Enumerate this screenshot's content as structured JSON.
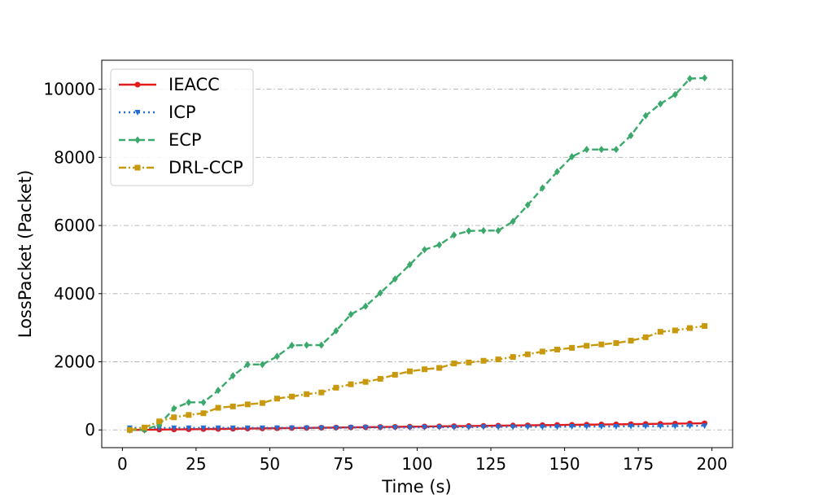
{
  "chart_data": {
    "type": "line",
    "xlabel": "Time (s)",
    "ylabel": "LossPacket (Packet)",
    "xlim": [
      -7,
      207
    ],
    "ylim": [
      -520,
      10850
    ],
    "xticks": [
      0,
      25,
      50,
      75,
      100,
      125,
      150,
      175,
      200
    ],
    "yticks": [
      0,
      2000,
      4000,
      6000,
      8000,
      10000
    ],
    "grid": "horizontal, dash-dot",
    "legend_position": "upper-left",
    "x": [
      2.5,
      7.5,
      12.5,
      17.5,
      22.5,
      27.5,
      32.5,
      37.5,
      42.5,
      47.5,
      52.5,
      57.5,
      62.5,
      67.5,
      72.5,
      77.5,
      82.5,
      87.5,
      92.5,
      97.5,
      102.5,
      107.5,
      112.5,
      117.5,
      122.5,
      127.5,
      132.5,
      137.5,
      142.5,
      147.5,
      152.5,
      157.5,
      162.5,
      167.5,
      172.5,
      177.5,
      182.5,
      187.5,
      192.5,
      197.5
    ],
    "series": [
      {
        "name": "IEACC",
        "color": "#e31a1c",
        "line_style": "solid",
        "marker": "circle",
        "values": [
          0,
          5,
          10,
          15,
          20,
          25,
          30,
          35,
          40,
          45,
          50,
          55,
          60,
          65,
          70,
          75,
          80,
          85,
          90,
          95,
          100,
          105,
          110,
          115,
          120,
          125,
          130,
          135,
          140,
          145,
          150,
          155,
          160,
          165,
          170,
          175,
          180,
          185,
          190,
          195
        ]
      },
      {
        "name": "ICP",
        "color": "#1f6fd6",
        "line_style": "dotted",
        "marker": "triangle-down",
        "values": [
          60,
          60,
          60,
          60,
          60,
          60,
          60,
          60,
          60,
          60,
          60,
          60,
          60,
          60,
          60,
          70,
          70,
          70,
          70,
          70,
          80,
          80,
          80,
          80,
          90,
          90,
          90,
          90,
          90,
          90,
          100,
          100,
          100,
          100,
          110,
          110,
          110,
          110,
          120,
          120
        ]
      },
      {
        "name": "ECP",
        "color": "#3aa96b",
        "line_style": "dashed",
        "marker": "diamond",
        "values": [
          0,
          0,
          150,
          630,
          810,
          810,
          1160,
          1590,
          1920,
          1920,
          2160,
          2480,
          2490,
          2490,
          2910,
          3390,
          3630,
          4020,
          4430,
          4850,
          5290,
          5430,
          5720,
          5840,
          5850,
          5850,
          6120,
          6600,
          7100,
          7580,
          8020,
          8230,
          8230,
          8230,
          8640,
          9220,
          9570,
          9840,
          10310,
          10330
        ]
      },
      {
        "name": "DRL-CCP",
        "color": "#c8990c",
        "line_style": "dash-dot",
        "marker": "square",
        "values": [
          0,
          70,
          250,
          370,
          440,
          490,
          650,
          690,
          750,
          790,
          920,
          980,
          1050,
          1100,
          1240,
          1340,
          1410,
          1500,
          1620,
          1720,
          1780,
          1820,
          1950,
          1980,
          2030,
          2070,
          2140,
          2220,
          2300,
          2360,
          2410,
          2470,
          2510,
          2550,
          2620,
          2720,
          2880,
          2920,
          2990,
          3050
        ]
      }
    ]
  }
}
